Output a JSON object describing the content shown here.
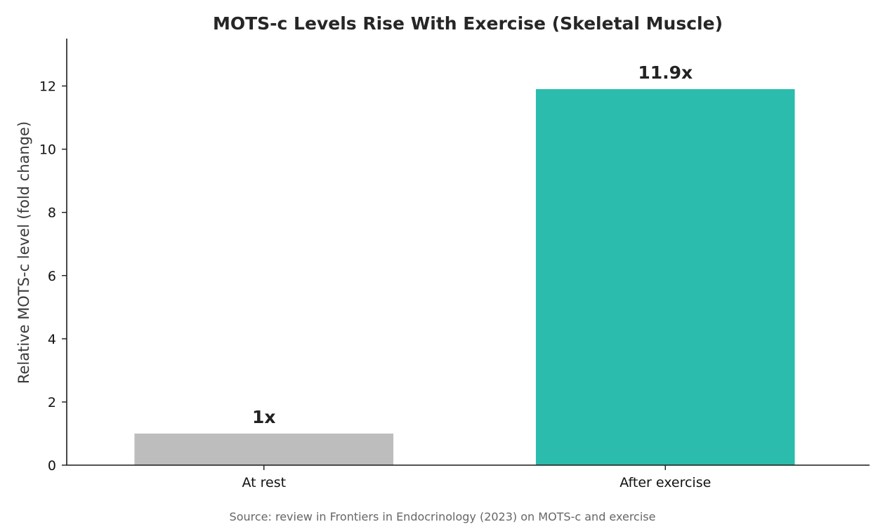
{
  "chart_data": {
    "type": "bar",
    "title": "MOTS-c Levels Rise With Exercise (Skeletal Muscle)",
    "xlabel": "",
    "ylabel": "Relative MOTS-c level (fold change)",
    "categories": [
      "At rest",
      "After exercise"
    ],
    "values": [
      1,
      11.9
    ],
    "value_labels": [
      "1x",
      "11.9x"
    ],
    "colors": [
      "#bdbdbd",
      "#2bbcae"
    ],
    "ylim": [
      0,
      13.5
    ],
    "yticks": [
      0,
      2,
      4,
      6,
      8,
      10,
      12
    ],
    "grid": false,
    "legend": "none"
  },
  "source_note": "Source: review in Frontiers in Endocrinology (2023) on MOTS-c and exercise"
}
